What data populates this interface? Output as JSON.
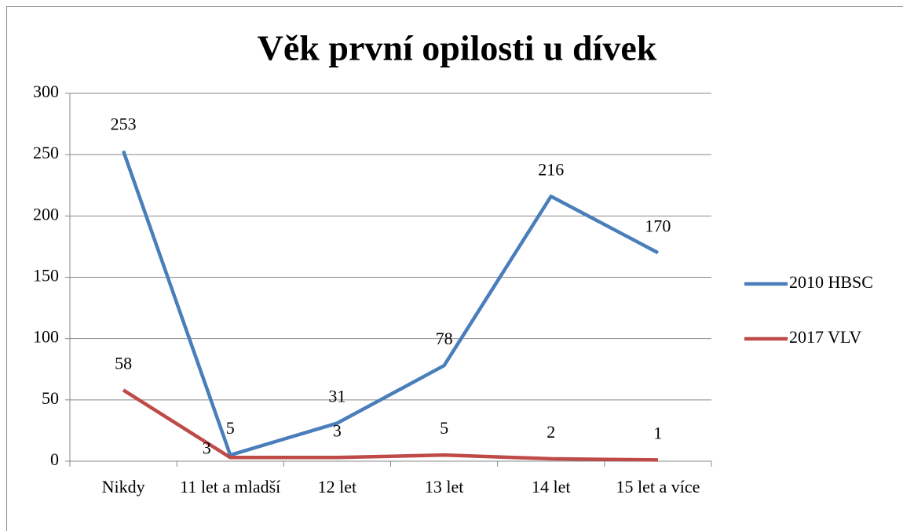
{
  "chart_data": {
    "type": "line",
    "title": "Věk první opilosti u dívek",
    "categories": [
      "Nikdy",
      "11 let a mladší",
      "12 let",
      "13 let",
      "14 let",
      "15 let a více"
    ],
    "series": [
      {
        "name": "2010 HBSC",
        "color": "#4a7ebb",
        "values": [
          253,
          5,
          31,
          78,
          216,
          170
        ]
      },
      {
        "name": "2017 VLV",
        "color": "#be4b48",
        "values": [
          58,
          3,
          3,
          5,
          2,
          1
        ]
      }
    ],
    "ylim": [
      0,
      300
    ],
    "yticks": [
      0,
      50,
      100,
      150,
      200,
      250,
      300
    ],
    "grid": true,
    "legend": "right"
  }
}
